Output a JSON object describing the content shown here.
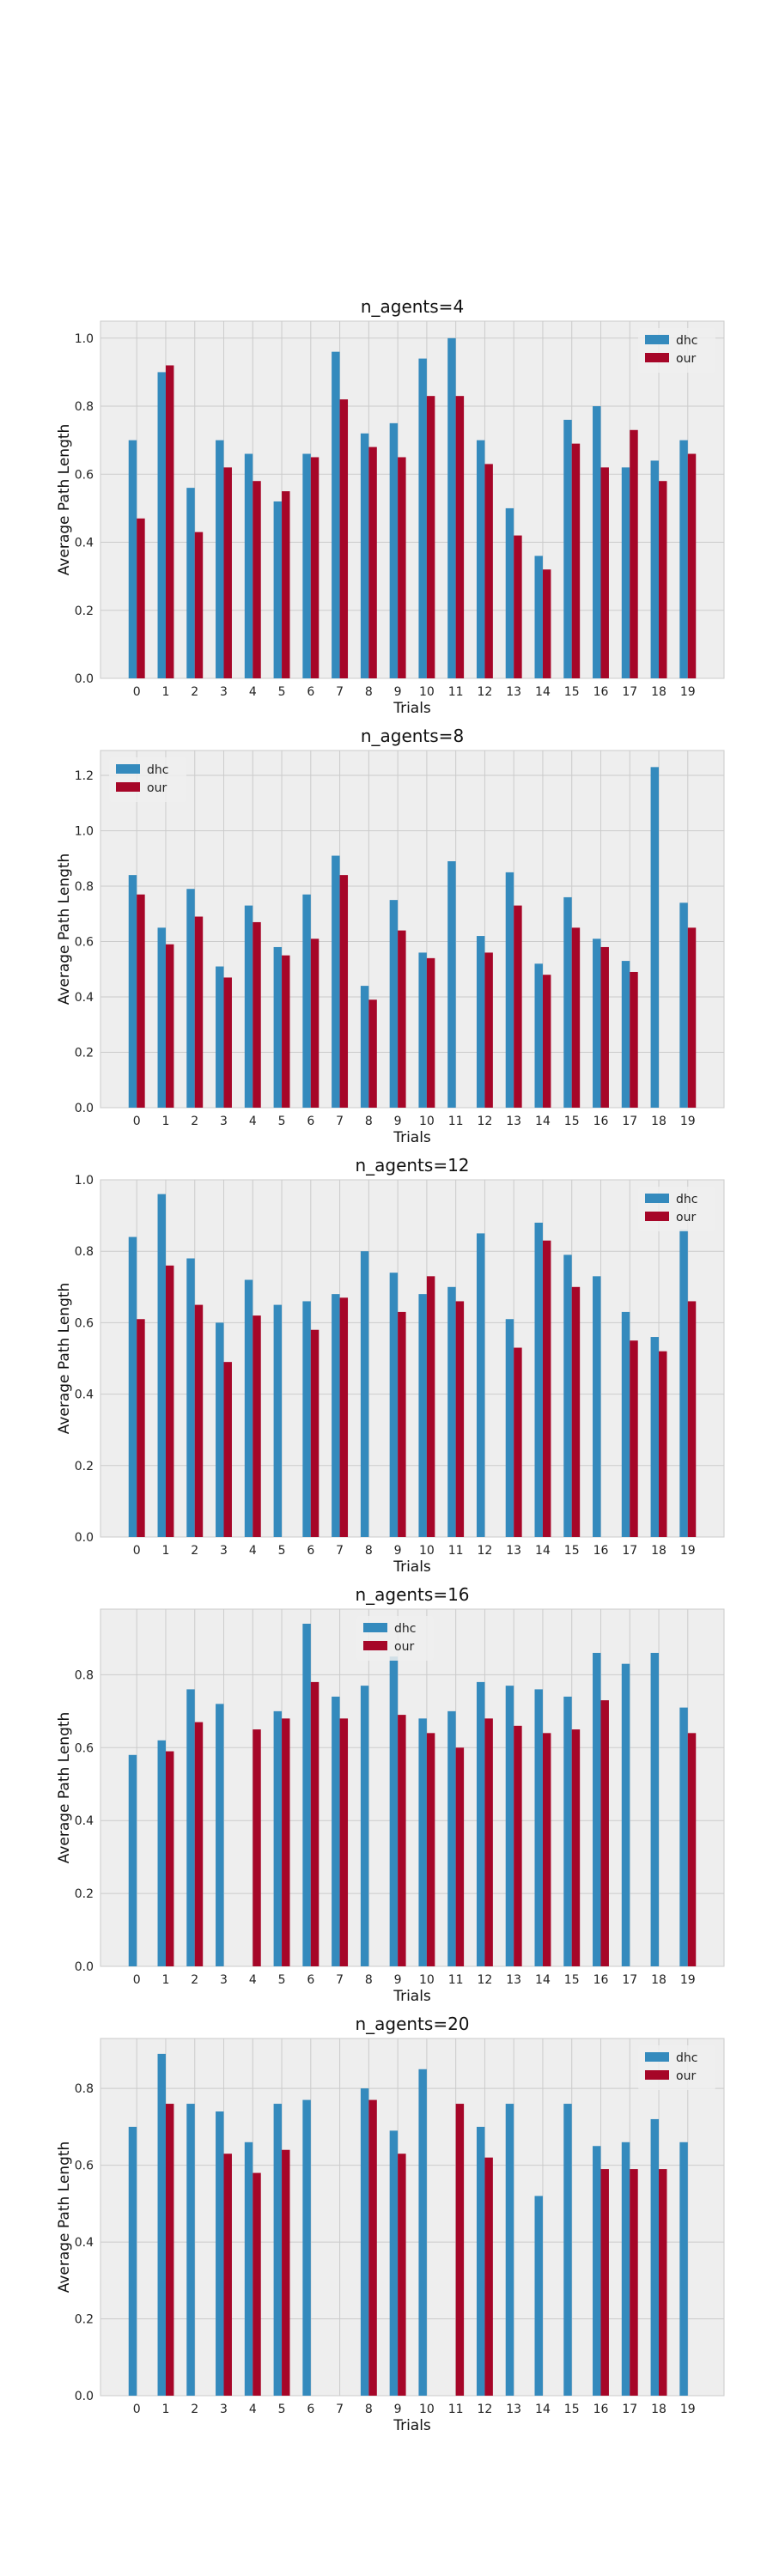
{
  "colors": {
    "dhc": "#348abd",
    "our": "#a60628",
    "panel_bg": "#eeeeee",
    "grid": "#cbcbcb"
  },
  "chart_data": [
    {
      "type": "bar",
      "title": "n_agents=4",
      "xlabel": "Trials",
      "ylabel": "Average Path Length",
      "categories": [
        "0",
        "1",
        "2",
        "3",
        "4",
        "5",
        "6",
        "7",
        "8",
        "9",
        "10",
        "11",
        "12",
        "13",
        "14",
        "15",
        "16",
        "17",
        "18",
        "19"
      ],
      "ylim": [
        0,
        1.05
      ],
      "yticks": [
        "0.0",
        "0.2",
        "0.4",
        "0.6",
        "0.8",
        "1.0"
      ],
      "ytick_values": [
        0,
        0.2,
        0.4,
        0.6,
        0.8,
        1.0
      ],
      "legend_position": "top-right",
      "grid": true,
      "series": [
        {
          "name": "dhc",
          "values": [
            0.7,
            0.9,
            0.56,
            0.7,
            0.66,
            0.52,
            0.66,
            0.96,
            0.72,
            0.75,
            0.94,
            1.0,
            0.7,
            0.5,
            0.36,
            0.76,
            0.8,
            0.62,
            0.64,
            0.7
          ]
        },
        {
          "name": "our",
          "values": [
            0.47,
            0.92,
            0.43,
            0.62,
            0.58,
            0.55,
            0.65,
            0.82,
            0.68,
            0.65,
            0.83,
            0.83,
            0.63,
            0.42,
            0.32,
            0.69,
            0.62,
            0.73,
            0.58,
            0.66
          ]
        }
      ]
    },
    {
      "type": "bar",
      "title": "n_agents=8",
      "xlabel": "Trials",
      "ylabel": "Average Path Length",
      "categories": [
        "0",
        "1",
        "2",
        "3",
        "4",
        "5",
        "6",
        "7",
        "8",
        "9",
        "10",
        "11",
        "12",
        "13",
        "14",
        "15",
        "16",
        "17",
        "18",
        "19"
      ],
      "ylim": [
        0,
        1.29
      ],
      "yticks": [
        "0.0",
        "0.2",
        "0.4",
        "0.6",
        "0.8",
        "1.0",
        "1.2"
      ],
      "ytick_values": [
        0,
        0.2,
        0.4,
        0.6,
        0.8,
        1.0,
        1.2
      ],
      "legend_position": "top-left",
      "grid": true,
      "series": [
        {
          "name": "dhc",
          "values": [
            0.84,
            0.65,
            0.79,
            0.51,
            0.73,
            0.58,
            0.77,
            0.91,
            0.44,
            0.75,
            0.56,
            0.89,
            0.62,
            0.85,
            0.52,
            0.76,
            0.61,
            0.53,
            1.23,
            0.74
          ]
        },
        {
          "name": "our",
          "values": [
            0.77,
            0.59,
            0.69,
            0.47,
            0.67,
            0.55,
            0.61,
            0.84,
            0.39,
            0.64,
            0.54,
            0.0,
            0.56,
            0.73,
            0.48,
            0.65,
            0.58,
            0.49,
            0.0,
            0.65
          ]
        }
      ]
    },
    {
      "type": "bar",
      "title": "n_agents=12",
      "xlabel": "Trials",
      "ylabel": "Average Path Length",
      "categories": [
        "0",
        "1",
        "2",
        "3",
        "4",
        "5",
        "6",
        "7",
        "8",
        "9",
        "10",
        "11",
        "12",
        "13",
        "14",
        "15",
        "16",
        "17",
        "18",
        "19"
      ],
      "ylim": [
        0,
        1.0
      ],
      "yticks": [
        "0.0",
        "0.2",
        "0.4",
        "0.6",
        "0.8",
        "1.0"
      ],
      "ytick_values": [
        0,
        0.2,
        0.4,
        0.6,
        0.8,
        1.0
      ],
      "legend_position": "top-right",
      "grid": true,
      "series": [
        {
          "name": "dhc",
          "values": [
            0.84,
            0.96,
            0.78,
            0.6,
            0.72,
            0.65,
            0.66,
            0.68,
            0.8,
            0.74,
            0.68,
            0.7,
            0.85,
            0.61,
            0.88,
            0.79,
            0.73,
            0.63,
            0.56,
            0.86
          ]
        },
        {
          "name": "our",
          "values": [
            0.61,
            0.76,
            0.65,
            0.49,
            0.62,
            0.0,
            0.58,
            0.67,
            0.0,
            0.63,
            0.73,
            0.66,
            0.0,
            0.53,
            0.83,
            0.7,
            0.0,
            0.55,
            0.52,
            0.66
          ]
        }
      ]
    },
    {
      "type": "bar",
      "title": "n_agents=16",
      "xlabel": "Trials",
      "ylabel": "Average Path Length",
      "categories": [
        "0",
        "1",
        "2",
        "3",
        "4",
        "5",
        "6",
        "7",
        "8",
        "9",
        "10",
        "11",
        "12",
        "13",
        "14",
        "15",
        "16",
        "17",
        "18",
        "19"
      ],
      "ylim": [
        0,
        0.98
      ],
      "yticks": [
        "0.0",
        "0.2",
        "0.4",
        "0.6",
        "0.8"
      ],
      "ytick_values": [
        0,
        0.2,
        0.4,
        0.6,
        0.8
      ],
      "legend_position": "top-center",
      "grid": true,
      "series": [
        {
          "name": "dhc",
          "values": [
            0.58,
            0.62,
            0.76,
            0.72,
            0.0,
            0.7,
            0.94,
            0.74,
            0.77,
            0.85,
            0.68,
            0.7,
            0.78,
            0.77,
            0.76,
            0.74,
            0.86,
            0.83,
            0.86,
            0.71
          ]
        },
        {
          "name": "our",
          "values": [
            0.0,
            0.59,
            0.67,
            0.0,
            0.65,
            0.68,
            0.78,
            0.68,
            0.0,
            0.69,
            0.64,
            0.6,
            0.68,
            0.66,
            0.64,
            0.65,
            0.73,
            0.0,
            0.0,
            0.64
          ]
        }
      ]
    },
    {
      "type": "bar",
      "title": "n_agents=20",
      "xlabel": "Trials",
      "ylabel": "Average Path Length",
      "categories": [
        "0",
        "1",
        "2",
        "3",
        "4",
        "5",
        "6",
        "7",
        "8",
        "9",
        "10",
        "11",
        "12",
        "13",
        "14",
        "15",
        "16",
        "17",
        "18",
        "19"
      ],
      "ylim": [
        0,
        0.93
      ],
      "yticks": [
        "0.0",
        "0.2",
        "0.4",
        "0.6",
        "0.8"
      ],
      "ytick_values": [
        0,
        0.2,
        0.4,
        0.6,
        0.8
      ],
      "legend_position": "top-right",
      "grid": true,
      "series": [
        {
          "name": "dhc",
          "values": [
            0.7,
            0.89,
            0.76,
            0.74,
            0.66,
            0.76,
            0.77,
            0.0,
            0.8,
            0.69,
            0.85,
            0.0,
            0.7,
            0.76,
            0.52,
            0.76,
            0.65,
            0.66,
            0.72,
            0.66
          ]
        },
        {
          "name": "our",
          "values": [
            0.0,
            0.76,
            0.0,
            0.63,
            0.58,
            0.64,
            0.0,
            0.0,
            0.77,
            0.63,
            0.0,
            0.76,
            0.62,
            0.0,
            0.0,
            0.0,
            0.59,
            0.59,
            0.59,
            0.0
          ]
        }
      ]
    }
  ]
}
